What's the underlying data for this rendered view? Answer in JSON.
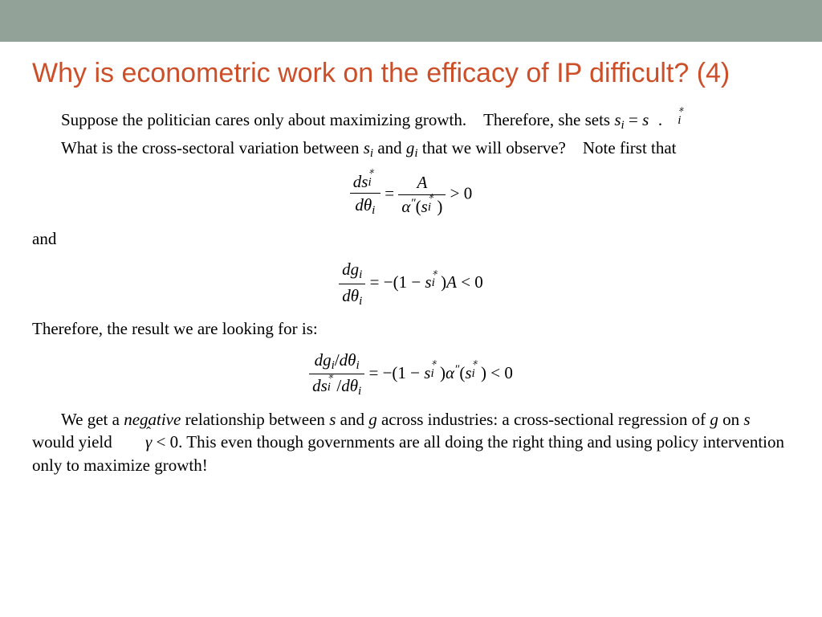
{
  "colors": {
    "top_bar": "#93a299",
    "title": "#cd4f29",
    "body": "#000000",
    "background": "#ffffff"
  },
  "typography": {
    "title_fontsize": 34,
    "body_fontsize": 21,
    "title_font": "Arial",
    "body_font": "Times New Roman"
  },
  "title": "Why is econometric work on the efficacy of IP difficult? (4)",
  "p1a": "Suppose the politician cares only about maximizing growth. Therefore, she sets ",
  "p1b": ".",
  "p2a": "What is the cross-sectoral variation between ",
  "p2b": " and ",
  "p2c": " that we will observe? Note first that",
  "and": "and",
  "p3": "Therefore, the result we are looking for is:",
  "p4a": "We get a ",
  "p4neg": "negative",
  "p4b": " relationship between ",
  "p4c": " and ",
  "p4d": " across industries: a cross-sectional regression of ",
  "p4e": " on ",
  "p4f": " would yield ",
  "p4g": ". This even though governments are all doing the right thing and using policy intervention only to maximize growth!",
  "math": {
    "s": "s",
    "g": "g",
    "i": "i",
    "star": "∗",
    "theta": "θ",
    "alpha": "α",
    "dbl_prime": "″",
    "A": "A",
    "d": "d",
    "eq": " = ",
    "gt0": " > 0",
    "lt0": " < 0",
    "neg": "−",
    "lparen": "(",
    "rparen": ")",
    "one_minus": "1 − ",
    "gamma": "γ",
    "hat": "ˆ"
  }
}
